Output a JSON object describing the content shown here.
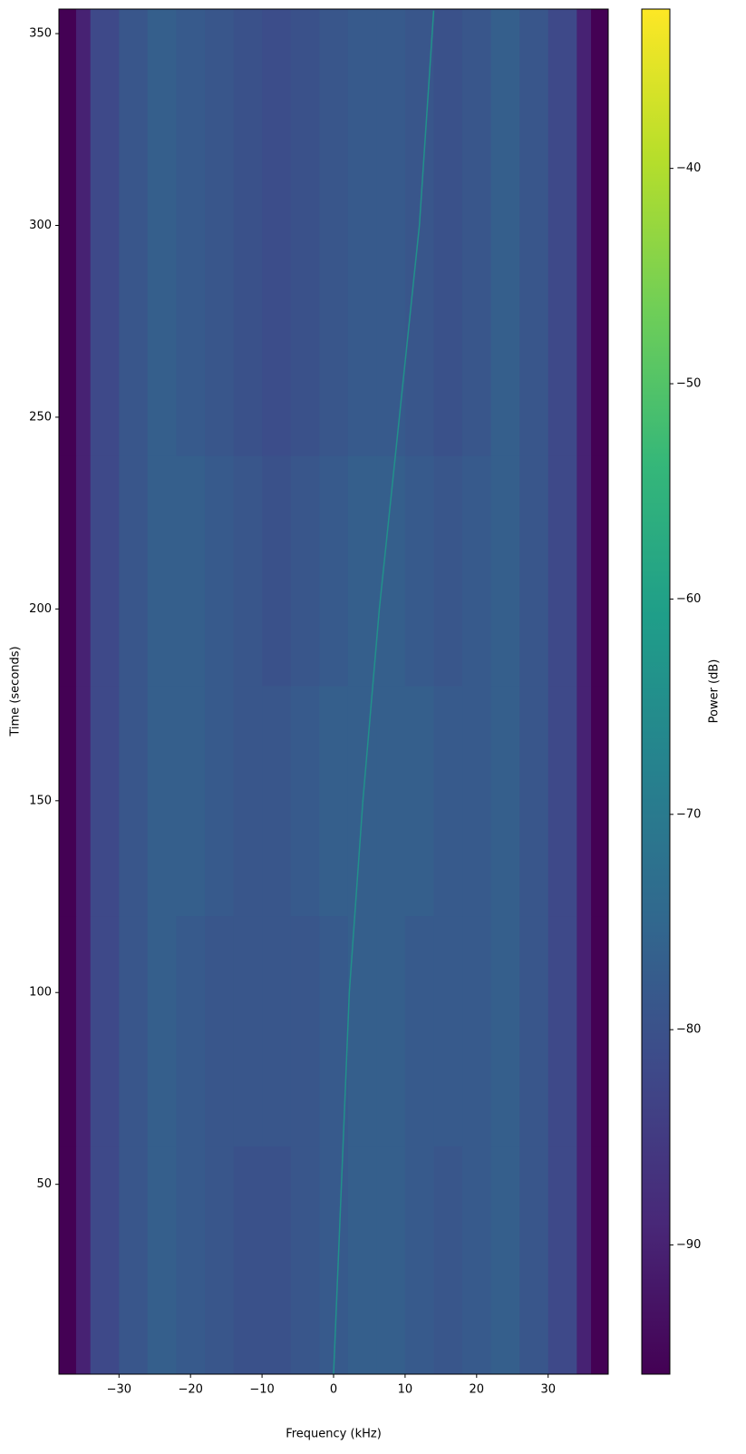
{
  "chart_data": {
    "type": "spectrogram",
    "xlabel": "Frequency (kHz)",
    "ylabel": "Time (seconds)",
    "xlim": [
      -38.4,
      38.4
    ],
    "ylim": [
      0.5,
      356.4
    ],
    "xticks": [
      {
        "value": -30,
        "label": "−30"
      },
      {
        "value": -20,
        "label": "−20"
      },
      {
        "value": -10,
        "label": "−10"
      },
      0,
      10,
      20,
      30
    ],
    "yticks": [
      50,
      100,
      150,
      200,
      250,
      300,
      350
    ],
    "colormap": "viridis",
    "freq_bins": [
      -38.4,
      -36,
      -34,
      -30,
      -26,
      -22,
      -18,
      -14,
      -10,
      -6,
      -2,
      2,
      6,
      10,
      14,
      18,
      22,
      26,
      30,
      34,
      36,
      38.4
    ],
    "time_bins": [
      0.5,
      60,
      120,
      180,
      240,
      300,
      356.4
    ],
    "values": [
      [
        -96,
        -90,
        -82,
        -79,
        -77,
        -78,
        -79,
        -80,
        -80,
        -79,
        -78,
        -77,
        -77,
        -78,
        -79,
        -78,
        -77,
        -79,
        -82,
        -90,
        -96
      ],
      [
        -96,
        -90,
        -82,
        -79,
        -77,
        -78,
        -79,
        -79,
        -79,
        -79,
        -78,
        -77,
        -77,
        -78,
        -78,
        -78,
        -77,
        -79,
        -82,
        -90,
        -96
      ],
      [
        -96,
        -90,
        -82,
        -79,
        -77,
        -77,
        -78,
        -79,
        -79,
        -78,
        -77,
        -77,
        -77,
        -77,
        -78,
        -78,
        -77,
        -79,
        -82,
        -90,
        -96
      ],
      [
        -96,
        -90,
        -82,
        -79,
        -77,
        -77,
        -78,
        -79,
        -80,
        -79,
        -78,
        -77,
        -77,
        -78,
        -79,
        -78,
        -77,
        -79,
        -82,
        -90,
        -96
      ],
      [
        -96,
        -90,
        -82,
        -79,
        -77,
        -78,
        -79,
        -80,
        -81,
        -80,
        -79,
        -78,
        -78,
        -79,
        -80,
        -79,
        -77,
        -79,
        -82,
        -90,
        -96
      ],
      [
        -96,
        -90,
        -82,
        -79,
        -77,
        -78,
        -79,
        -80,
        -81,
        -80,
        -79,
        -78,
        -78,
        -79,
        -80,
        -79,
        -77,
        -79,
        -82,
        -90,
        -96
      ]
    ],
    "tone": {
      "power": -64,
      "time": [
        0.5,
        50,
        100,
        150,
        200,
        250,
        300,
        356
      ],
      "freq": [
        0,
        1.1,
        2.2,
        4.1,
        6.4,
        9.2,
        12.0,
        14.0
      ]
    },
    "colorbar": {
      "label": "Power (dB)",
      "clim": [
        -96,
        -32.6
      ],
      "ticks": [
        {
          "value": -90,
          "label": "−90"
        },
        {
          "value": -80,
          "label": "−80"
        },
        {
          "value": -70,
          "label": "−70"
        },
        {
          "value": -60,
          "label": "−60"
        },
        {
          "value": -50,
          "label": "−50"
        },
        {
          "value": -40,
          "label": "−40"
        }
      ]
    }
  }
}
